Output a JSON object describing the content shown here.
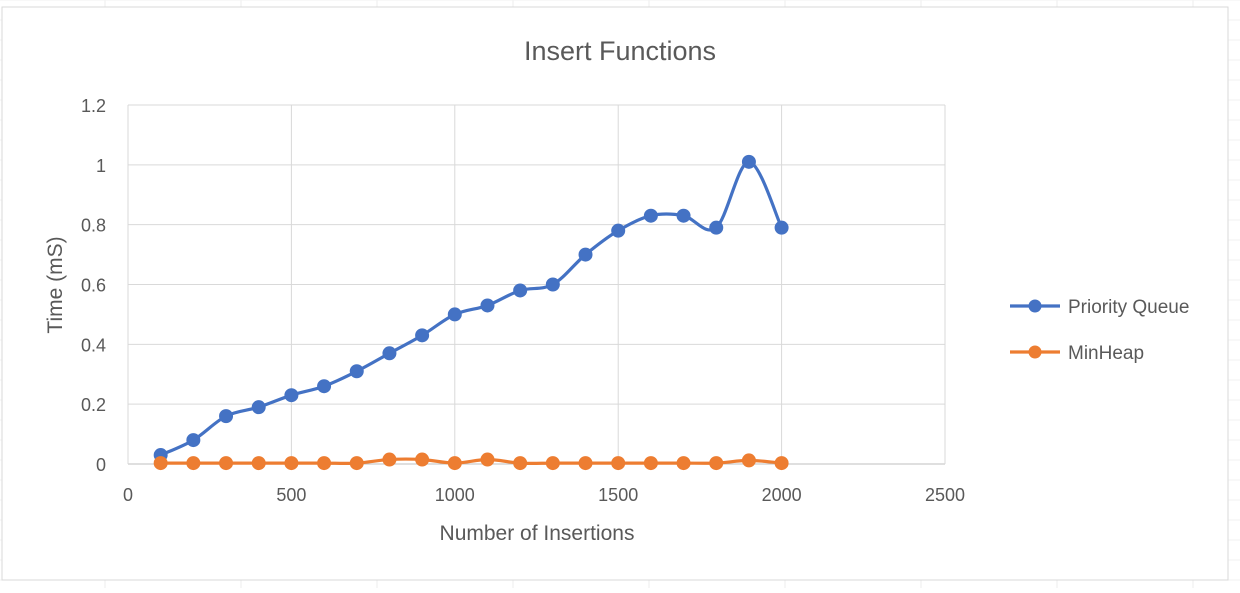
{
  "chart_data": {
    "type": "scatter",
    "title": "Insert Functions",
    "xlabel": "Number of Insertions",
    "ylabel": "Time (mS)",
    "xlim": [
      0,
      2500
    ],
    "ylim": [
      0,
      1.2
    ],
    "xticks": [
      0,
      500,
      1000,
      1500,
      2000,
      2500
    ],
    "yticks": [
      0,
      0.2,
      0.4,
      0.6,
      0.8,
      1,
      1.2
    ],
    "grid": true,
    "smooth_lines": true,
    "legend_position": "right",
    "x": [
      100,
      200,
      300,
      400,
      500,
      600,
      700,
      800,
      900,
      1000,
      1100,
      1200,
      1300,
      1400,
      1500,
      1600,
      1700,
      1800,
      1900,
      2000
    ],
    "series": [
      {
        "name": "Priority Queue",
        "color": "#4472C4",
        "values": [
          0.03,
          0.08,
          0.16,
          0.19,
          0.23,
          0.26,
          0.31,
          0.37,
          0.43,
          0.5,
          0.53,
          0.58,
          0.6,
          0.7,
          0.78,
          0.83,
          0.83,
          0.79,
          1.01,
          0.79
        ]
      },
      {
        "name": "MinHeap",
        "color": "#ED7D31",
        "values": [
          0.003,
          0.003,
          0.003,
          0.003,
          0.003,
          0.003,
          0.003,
          0.015,
          0.015,
          0.003,
          0.015,
          0.003,
          0.003,
          0.003,
          0.003,
          0.003,
          0.003,
          0.003,
          0.012,
          0.003
        ]
      }
    ]
  }
}
